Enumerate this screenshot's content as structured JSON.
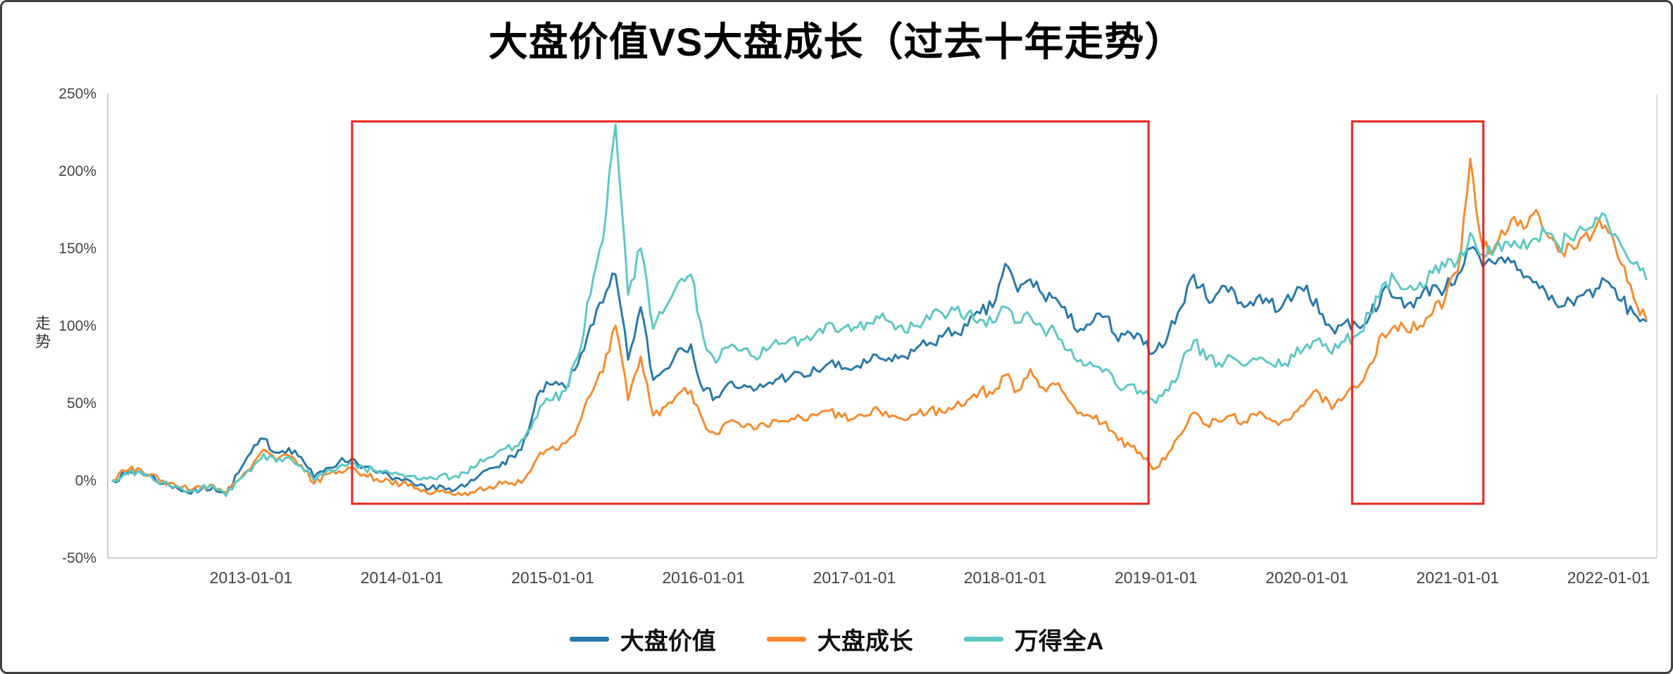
{
  "chart_data": {
    "type": "line",
    "title": "大盘价值VS大盘成长（过去十年走势）",
    "ylabel": "走势",
    "xlabel": "",
    "ylim": [
      -50,
      250
    ],
    "xlim": [
      2012.05,
      2022.32
    ],
    "grid": false,
    "legend_position": "bottom",
    "y_ticks": [
      {
        "value": 250,
        "label": "250%"
      },
      {
        "value": 200,
        "label": "200%"
      },
      {
        "value": 150,
        "label": "150%"
      },
      {
        "value": 100,
        "label": "100%"
      },
      {
        "value": 50,
        "label": "50%"
      },
      {
        "value": 0,
        "label": "0%"
      },
      {
        "value": -50,
        "label": "-50%"
      }
    ],
    "x_ticks": [
      {
        "value": 2013,
        "label": "2013-01-01"
      },
      {
        "value": 2014,
        "label": "2014-01-01"
      },
      {
        "value": 2015,
        "label": "2015-01-01"
      },
      {
        "value": 2016,
        "label": "2016-01-01"
      },
      {
        "value": 2017,
        "label": "2017-01-01"
      },
      {
        "value": 2018,
        "label": "2018-01-01"
      },
      {
        "value": 2019,
        "label": "2019-01-01"
      },
      {
        "value": 2020,
        "label": "2020-01-01"
      },
      {
        "value": 2021,
        "label": "2021-01-01"
      },
      {
        "value": 2022,
        "label": "2022-01-01"
      }
    ],
    "x_start": 2012.0833,
    "x_step": 0.0833333,
    "x_unit": "year (monthly samples, % cumulative return)",
    "series": [
      {
        "name": "大盘价值",
        "color": "#2979a8",
        "values": [
          0,
          4,
          6,
          3,
          -2,
          -4,
          -8,
          -6,
          -4,
          -9,
          5,
          18,
          27,
          18,
          21,
          15,
          2,
          8,
          12,
          14,
          9,
          5,
          3,
          0,
          -3,
          -6,
          -3,
          -7,
          -4,
          2,
          8,
          12,
          15,
          30,
          58,
          62,
          60,
          75,
          100,
          115,
          133,
          78,
          112,
          65,
          72,
          85,
          88,
          58,
          54,
          63,
          60,
          58,
          62,
          66,
          68,
          67,
          71,
          76,
          72,
          73,
          76,
          79,
          77,
          80,
          86,
          89,
          93,
          96,
          100,
          108,
          112,
          140,
          122,
          130,
          120,
          118,
          105,
          98,
          103,
          106,
          90,
          95,
          88,
          84,
          95,
          112,
          133,
          118,
          122,
          125,
          112,
          118,
          115,
          112,
          120,
          126,
          108,
          98,
          102,
          100,
          106,
          122,
          118,
          114,
          118,
          126,
          124,
          133,
          150,
          138,
          140,
          144,
          136,
          128,
          122,
          112,
          116,
          120,
          124,
          128,
          116,
          108,
          103
        ]
      },
      {
        "name": "大盘成长",
        "color": "#f68b2e",
        "values": [
          0,
          6,
          8,
          4,
          0,
          -3,
          -6,
          -4,
          -3,
          -8,
          0,
          8,
          20,
          13,
          16,
          10,
          -2,
          4,
          6,
          8,
          4,
          1,
          0,
          -2,
          -5,
          -8,
          -7,
          -9,
          -8,
          -6,
          -4,
          -2,
          -3,
          4,
          18,
          22,
          24,
          35,
          55,
          70,
          100,
          52,
          80,
          42,
          48,
          56,
          58,
          38,
          30,
          38,
          35,
          33,
          35,
          38,
          40,
          39,
          42,
          45,
          41,
          40,
          42,
          45,
          42,
          39,
          43,
          46,
          44,
          48,
          52,
          58,
          56,
          68,
          58,
          72,
          60,
          62,
          52,
          44,
          40,
          38,
          26,
          22,
          14,
          8,
          18,
          30,
          44,
          36,
          38,
          42,
          38,
          42,
          40,
          38,
          44,
          52,
          56,
          46,
          54,
          60,
          75,
          95,
          100,
          96,
          100,
          108,
          118,
          135,
          208,
          150,
          152,
          162,
          168,
          172,
          160,
          148,
          152,
          158,
          164,
          160,
          140,
          118,
          104
        ]
      },
      {
        "name": "万得全A",
        "color": "#5ec8c2",
        "values": [
          0,
          5,
          6,
          3,
          -1,
          -4,
          -7,
          -5,
          -4,
          -10,
          0,
          6,
          17,
          12,
          15,
          9,
          0,
          6,
          9,
          11,
          8,
          6,
          5,
          4,
          3,
          1,
          3,
          2,
          5,
          10,
          15,
          20,
          22,
          32,
          48,
          52,
          58,
          80,
          120,
          155,
          230,
          120,
          150,
          98,
          112,
          128,
          133,
          92,
          76,
          86,
          84,
          80,
          84,
          88,
          92,
          91,
          96,
          102,
          98,
          99,
          102,
          105,
          102,
          96,
          100,
          104,
          108,
          110,
          108,
          104,
          102,
          112,
          102,
          106,
          98,
          96,
          84,
          78,
          74,
          72,
          60,
          62,
          56,
          50,
          58,
          75,
          90,
          78,
          76,
          80,
          74,
          78,
          76,
          74,
          80,
          88,
          92,
          82,
          90,
          94,
          108,
          126,
          130,
          124,
          128,
          134,
          138,
          142,
          160,
          146,
          150,
          154,
          150,
          156,
          160,
          152,
          156,
          162,
          170,
          165,
          152,
          140,
          130
        ]
      }
    ],
    "highlight_boxes": [
      {
        "x0": 2013.67,
        "x1": 2018.95,
        "y0": -15,
        "y1": 232,
        "color": "#e8251f"
      },
      {
        "x0": 2020.3,
        "x1": 2021.17,
        "y0": -15,
        "y1": 232,
        "color": "#e8251f"
      }
    ]
  }
}
